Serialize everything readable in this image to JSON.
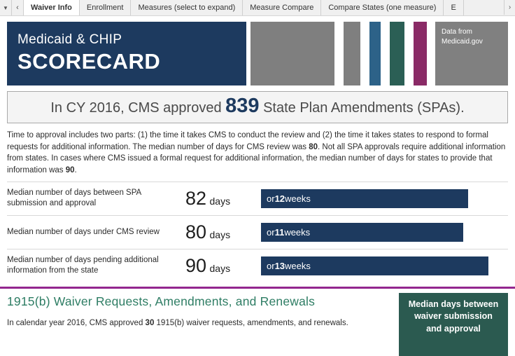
{
  "tabs": {
    "dropdown_icon": "▼",
    "back_icon": "‹",
    "next_icon": "›",
    "items": [
      {
        "label": "Waiver Info",
        "active": true
      },
      {
        "label": "Enrollment",
        "active": false
      },
      {
        "label": "Measures (select to expand)",
        "active": false
      },
      {
        "label": "Measure Compare",
        "active": false
      },
      {
        "label": "Compare States (one measure)",
        "active": false
      },
      {
        "label": "E",
        "active": false
      }
    ]
  },
  "banner": {
    "title_line1": "Medicaid & CHIP",
    "title_line2": "SCORECARD",
    "data_source": "Data from Medicaid.gov"
  },
  "headline": {
    "prefix": "In CY 2016, CMS approved ",
    "number": "839",
    "suffix": " State Plan Amendments (SPAs)."
  },
  "intro": {
    "part1": "Time to approval includes two parts: (1) the time it takes CMS to conduct the review and (2) the time it takes states to respond to formal requests for additional information. The median number of days for CMS review was ",
    "bold1": "80",
    "part2": ". Not all SPA approvals require additional information from states. In cases where CMS issued a formal request for additional information, the median number of days for states to provide that information was ",
    "bold2": "90",
    "part3": "."
  },
  "chart_data": {
    "type": "bar",
    "rows": [
      {
        "label": "Median number of days between SPA submission and approval",
        "days": 82,
        "weeks": 12
      },
      {
        "label": "Median number of days under CMS review",
        "days": 80,
        "weeks": 11
      },
      {
        "label": "Median number of days pending additional information from the state",
        "days": 90,
        "weeks": 13
      }
    ],
    "max_days": 90,
    "days_unit": "days",
    "weeks_prefix": "or ",
    "weeks_unit": " weeks",
    "bar_color": "#1d3a5f"
  },
  "waiver_section": {
    "heading": "1915(b) Waiver Requests, Amendments, and Renewals",
    "text_part1": "In calendar year 2016, CMS approved ",
    "text_bold": "30",
    "text_part2": " 1915(b) waiver requests, amendments, and renewals.",
    "side_box": "Median days between waiver submission and approval"
  },
  "colors": {
    "navy": "#1d3a5f",
    "banner_gray": "#7f7f7f",
    "stripe_blue": "#2d6288",
    "stripe_teal": "#2b5f55",
    "stripe_purple": "#8a2a66",
    "divider_purple": "#93278f",
    "heading_teal": "#2e7d64",
    "waiver_box_teal": "#2b5a50"
  }
}
